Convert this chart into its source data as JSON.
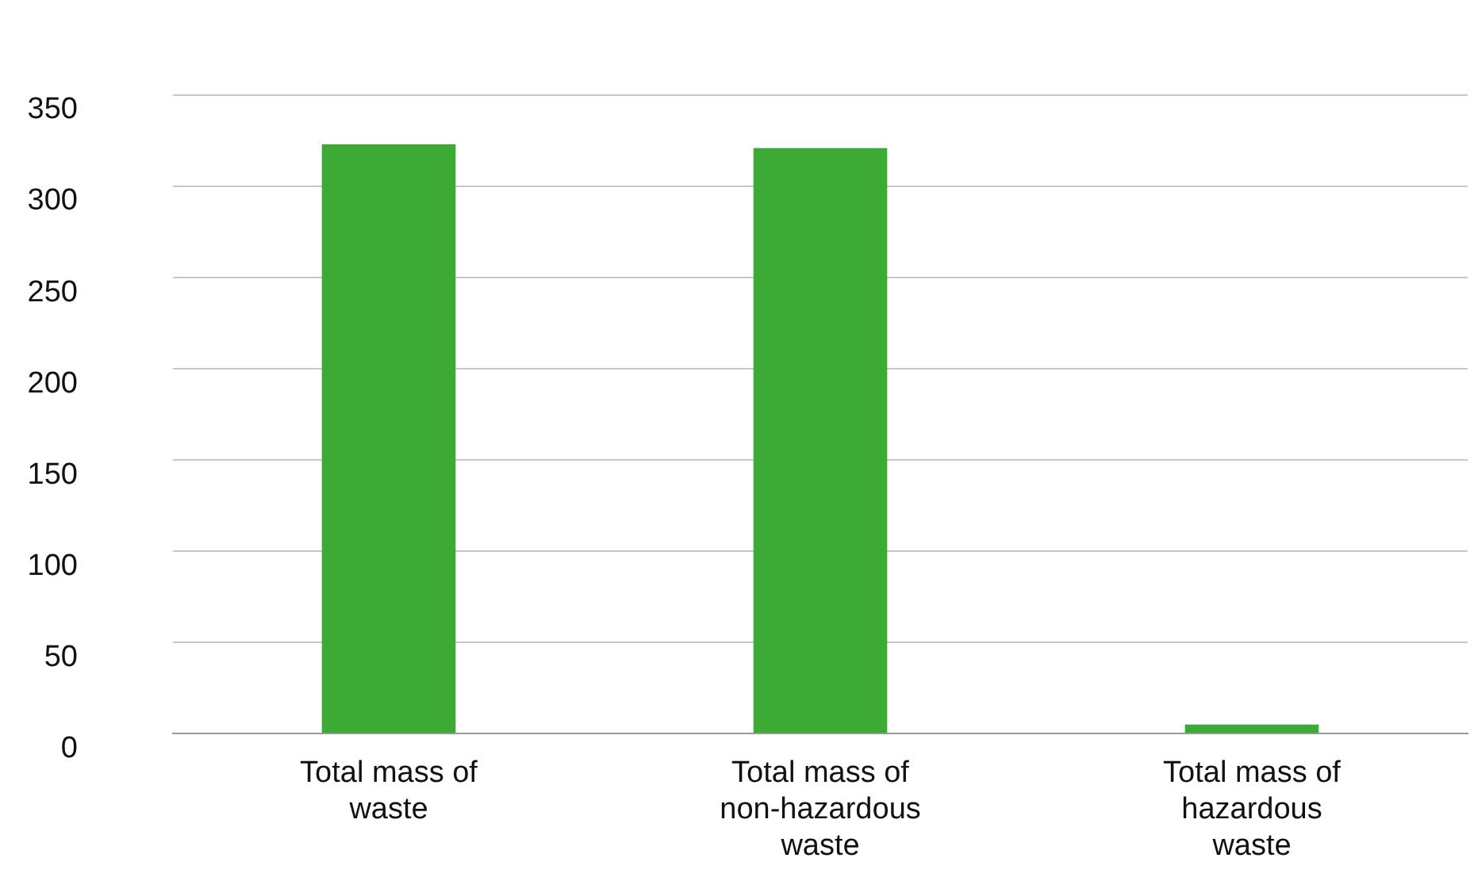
{
  "chart_data": {
    "type": "bar",
    "categories": [
      "Total mass of waste",
      "Total mass of non-hazardous waste",
      "Total mass of hazardous waste"
    ],
    "values": [
      323,
      321,
      5
    ],
    "color": "#3daa35",
    "ylim": [
      0,
      350
    ],
    "yticks": [
      0,
      50,
      100,
      150,
      200,
      250,
      300,
      350
    ],
    "grid": "y",
    "legend": false
  }
}
